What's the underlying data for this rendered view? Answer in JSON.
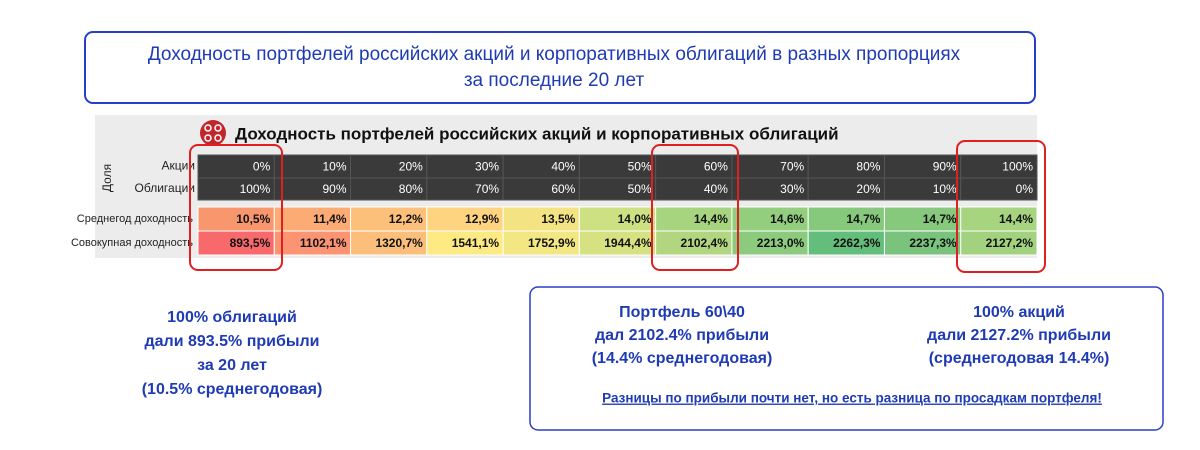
{
  "header": {
    "title": [
      "Доходность портфелей российских акций и корпоративных облигаций в разных пропорциях",
      "за последние 20 лет"
    ]
  },
  "table": {
    "title": "Доходность портфелей российских акций и корпоративных облигаций",
    "group_label": "Доля",
    "rows": [
      [
        "Акции",
        "0%",
        "10%",
        "20%",
        "30%",
        "40%",
        "50%",
        "60%",
        "70%",
        "80%",
        "90%",
        "100%"
      ],
      [
        "Облигации",
        "100%",
        "90%",
        "80%",
        "70%",
        "60%",
        "50%",
        "40%",
        "30%",
        "20%",
        "10%",
        "0%"
      ],
      [
        "Среднегод доходность",
        "10,5%",
        "11,4%",
        "12,2%",
        "12,9%",
        "13,5%",
        "14,0%",
        "14,4%",
        "14,6%",
        "14,7%",
        "14,7%",
        "14,4%"
      ],
      [
        "Совокупная доходность",
        "893,5%",
        "1102,1%",
        "1320,7%",
        "1541,1%",
        "1752,9%",
        "1944,4%",
        "2102,4%",
        "2213,0%",
        "2262,3%",
        "2237,3%",
        "2127,2%"
      ]
    ]
  },
  "notes": {
    "bonds": [
      "100% облигаций",
      "дали 893.5% прибыли",
      "за 20 лет",
      "(10.5% среднегодовая)"
    ],
    "portfolio": [
      "Портфель 60\\40",
      "дал 2102.4% прибыли",
      "(14.4% среднегодовая)"
    ],
    "stocks": [
      "100% акций",
      "дали 2127.2% прибыли",
      "(среднегодовая 14.4%)"
    ],
    "conclusion": "Разницы по прибыли почти нет, но есть разница по просадкам портфеля!"
  }
}
